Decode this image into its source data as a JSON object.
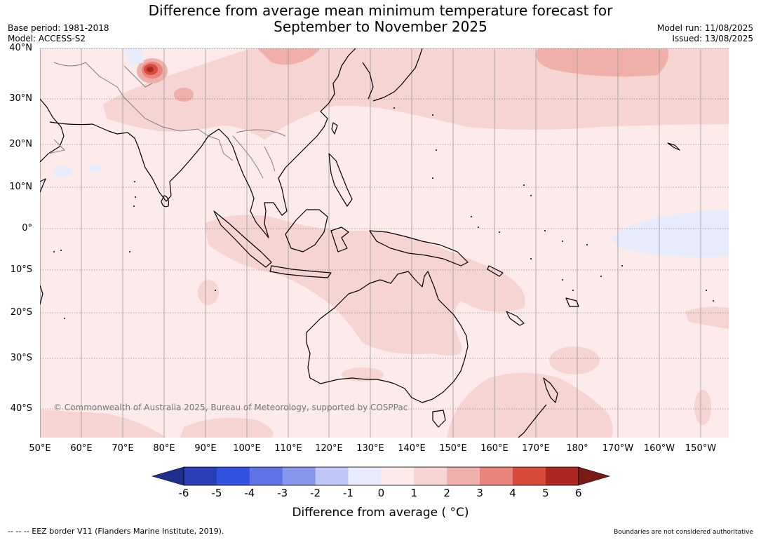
{
  "title_line1": "Difference from average mean minimum temperature forecast for",
  "title_line2": "September to November 2025",
  "base_period": "Base period: 1981-2018",
  "model": "Model: ACCESS-S2",
  "model_run": "Model run: 11/08/2025",
  "issued": "Issued: 13/08/2025",
  "lat_labels": [
    "40°N",
    "30°N",
    "20°N",
    "10°N",
    "0°",
    "10°S",
    "20°S",
    "30°S",
    "40°S"
  ],
  "lon_labels": [
    "50°E",
    "60°E",
    "70°E",
    "80°E",
    "90°E",
    "100°E",
    "110°E",
    "120°E",
    "130°E",
    "140°E",
    "150°E",
    "160°E",
    "170°E",
    "180°",
    "170°W",
    "160°W",
    "150°W"
  ],
  "copyright": "© Commonwealth of Australia 2025, Bureau of Meteorology, supported by COSPPac",
  "colorbar": {
    "ticks": [
      "-6",
      "-5",
      "-4",
      "-3",
      "-2",
      "-1",
      "0",
      "1",
      "2",
      "3",
      "4",
      "5",
      "6"
    ],
    "colors": [
      "#1f2f8c",
      "#2a3eb5",
      "#3252e0",
      "#5f74e6",
      "#8797ec",
      "#bec7f5",
      "#e8ebfb",
      "#fcebea",
      "#f5d4d2",
      "#efb0ac",
      "#e8847c",
      "#d94a3d",
      "#ad2820",
      "#7a1a15"
    ],
    "label": "Difference from average ( °C)"
  },
  "footer_left": "--  --  -- EEZ border V11 (Flanders Marine Institute, 2019).",
  "footer_right": "Boundaries are not considered authoritative"
}
